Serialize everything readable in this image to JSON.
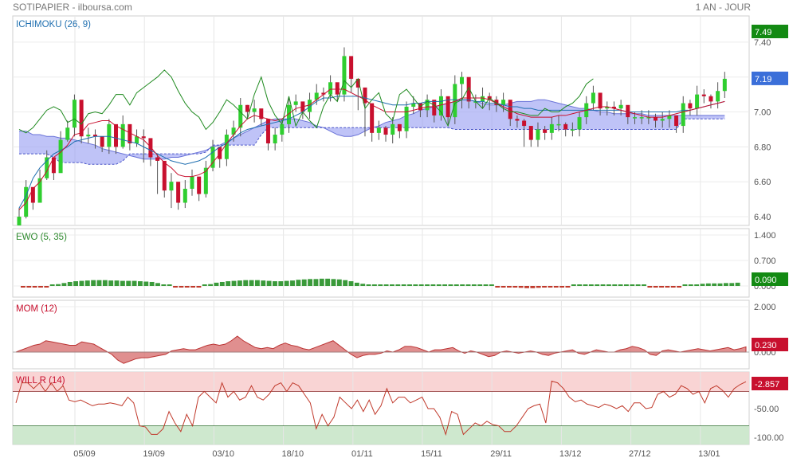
{
  "header": {
    "title": "SOTIPAPIER - ilboursa.com",
    "period": "1 AN - JOUR"
  },
  "colors": {
    "up": "#2fce2f",
    "down": "#c8102e",
    "tenkan": "#c8102e",
    "kijun": "#1f6fb0",
    "chikou": "#1f8a1f",
    "cloud": "#9da3f2",
    "ewo_up": "#3a9a3a",
    "ewo_down": "#c0392b",
    "mom": "#d66a6a",
    "will": "#c0392b",
    "badge_green": "#138a13",
    "badge_blue": "#3b6fd9",
    "badge_red": "#c8102e"
  },
  "chart_data": [
    {
      "type": "candlestick",
      "title": "ICHIMOKU (26, 9)",
      "y_ticks": [
        "7.40",
        "7.20",
        "7.00",
        "6.80",
        "6.60",
        "6.40"
      ],
      "ylim": [
        6.35,
        7.55
      ],
      "x_tick_labels": [
        "05/09",
        "19/09",
        "03/10",
        "18/10",
        "01/11",
        "15/11",
        "29/11",
        "13/12",
        "27/12",
        "13/01"
      ],
      "badges": [
        "7.49",
        "7.19"
      ],
      "series": {
        "close": [
          6.4,
          6.57,
          6.48,
          6.62,
          6.74,
          6.65,
          6.84,
          6.91,
          7.07,
          6.86,
          6.87,
          6.86,
          6.8,
          6.93,
          6.8,
          6.93,
          6.82,
          6.86,
          6.85,
          6.74,
          6.72,
          6.55,
          6.6,
          6.48,
          6.56,
          6.63,
          6.53,
          6.68,
          6.8,
          6.73,
          6.87,
          6.91,
          7.04,
          7.0,
          7.02,
          6.96,
          6.82,
          6.87,
          6.93,
          7.04,
          7.06,
          7.0,
          7.07,
          7.11,
          7.1,
          7.17,
          7.1,
          7.32,
          7.19,
          7.14,
          7.05,
          6.88,
          6.91,
          6.87,
          6.93,
          6.89,
          7.03,
          7.05,
          7.01,
          7.07,
          6.98,
          7.09,
          6.97,
          7.16,
          7.2,
          7.06,
          7.06,
          7.09,
          7.07,
          7.04,
          7.07,
          6.96,
          6.95,
          6.92,
          6.84,
          6.9,
          6.88,
          6.93,
          6.93,
          6.9,
          6.9,
          6.97,
          7.05,
          7.11,
          7.02,
          7.03,
          7.02,
          7.04,
          6.97,
          6.97,
          6.97,
          6.97,
          6.95,
          6.96,
          6.98,
          6.92,
          7.05,
          7.02,
          7.1,
          7.09,
          7.06,
          7.12,
          7.19
        ],
        "high": [
          6.45,
          6.61,
          6.53,
          6.67,
          6.78,
          6.69,
          6.89,
          6.95,
          7.1,
          6.91,
          6.91,
          6.9,
          6.84,
          6.96,
          6.85,
          6.98,
          6.86,
          6.9,
          6.9,
          6.79,
          6.76,
          6.59,
          6.65,
          6.53,
          6.61,
          6.67,
          6.58,
          6.72,
          6.84,
          6.77,
          6.9,
          6.95,
          7.08,
          7.04,
          7.07,
          6.99,
          6.87,
          6.91,
          6.96,
          7.08,
          7.1,
          7.04,
          7.11,
          7.16,
          7.14,
          7.21,
          7.14,
          7.37,
          7.23,
          7.19,
          7.08,
          6.93,
          6.95,
          6.92,
          6.97,
          6.93,
          7.06,
          7.09,
          7.05,
          7.1,
          7.03,
          7.13,
          7.02,
          7.21,
          7.23,
          7.1,
          7.1,
          7.14,
          7.11,
          7.09,
          7.11,
          7.0,
          6.98,
          6.96,
          6.88,
          6.94,
          6.92,
          6.97,
          6.98,
          6.94,
          6.94,
          7.0,
          7.09,
          7.15,
          7.06,
          7.06,
          7.06,
          7.07,
          7.02,
          7.0,
          7.01,
          7.01,
          6.99,
          7.0,
          7.01,
          6.96,
          7.09,
          7.07,
          7.15,
          7.13,
          7.1,
          7.17,
          7.23
        ],
        "low": [
          6.36,
          6.39,
          6.44,
          6.5,
          6.61,
          6.61,
          6.72,
          6.83,
          6.86,
          6.82,
          6.82,
          6.79,
          6.77,
          6.76,
          6.76,
          6.79,
          6.78,
          6.8,
          6.71,
          6.69,
          6.53,
          6.51,
          6.45,
          6.44,
          6.45,
          6.52,
          6.49,
          6.51,
          6.66,
          6.68,
          6.69,
          6.83,
          6.86,
          6.96,
          6.94,
          6.92,
          6.78,
          6.78,
          6.83,
          6.88,
          7.0,
          6.96,
          6.96,
          7.04,
          7.06,
          7.06,
          7.06,
          7.06,
          7.11,
          7.01,
          6.86,
          6.83,
          6.84,
          6.83,
          6.82,
          6.85,
          6.85,
          6.99,
          6.97,
          6.97,
          6.94,
          6.95,
          6.93,
          6.93,
          7.02,
          7.02,
          7.02,
          7.02,
          7.01,
          7.0,
          7.0,
          6.92,
          6.91,
          6.8,
          6.8,
          6.8,
          6.84,
          6.84,
          6.89,
          6.86,
          6.86,
          6.86,
          6.93,
          7.01,
          6.98,
          6.98,
          6.98,
          6.98,
          6.93,
          6.93,
          6.93,
          6.93,
          6.91,
          6.91,
          6.91,
          6.88,
          6.88,
          6.98,
          6.98,
          7.05,
          7.02,
          7.02,
          7.08
        ],
        "tenkan": [
          6.44,
          6.48,
          6.56,
          6.6,
          6.66,
          6.74,
          6.77,
          6.81,
          6.87,
          6.88,
          6.93,
          6.94,
          6.95,
          6.95,
          6.92,
          6.9,
          6.88,
          6.86,
          6.84,
          6.8,
          6.75,
          6.71,
          6.68,
          6.64,
          6.63,
          6.63,
          6.64,
          6.66,
          6.71,
          6.76,
          6.82,
          6.87,
          6.92,
          6.96,
          6.98,
          6.97,
          6.96,
          6.95,
          6.96,
          6.99,
          7.02,
          7.03,
          7.04,
          7.07,
          7.1,
          7.13,
          7.13,
          7.13,
          7.11,
          7.09,
          7.07,
          7.04,
          7.02,
          7.0,
          7.0,
          7.0,
          7.0,
          7.01,
          7.02,
          7.03,
          7.03,
          7.04,
          7.05,
          7.06,
          7.08,
          7.08,
          7.08,
          7.08,
          7.07,
          7.05,
          7.03,
          7.01,
          6.99,
          6.98,
          6.97,
          6.97,
          6.97,
          6.97,
          6.98,
          6.98,
          6.99,
          7.0,
          7.01,
          7.02,
          7.03,
          7.03,
          7.02,
          7.01,
          7.0,
          6.99,
          6.98,
          6.97,
          6.97,
          6.97,
          6.98,
          6.99,
          7.0,
          7.01,
          7.02,
          7.03,
          7.04,
          7.05,
          7.06
        ],
        "kijun": [
          6.45,
          6.52,
          6.62,
          6.68,
          6.72,
          6.76,
          6.78,
          6.8,
          6.83,
          6.84,
          6.85,
          6.86,
          6.86,
          6.86,
          6.85,
          6.84,
          6.83,
          6.82,
          6.8,
          6.78,
          6.76,
          6.74,
          6.72,
          6.71,
          6.7,
          6.71,
          6.72,
          6.74,
          6.77,
          6.8,
          6.82,
          6.85,
          6.88,
          6.9,
          6.91,
          6.92,
          6.93,
          6.94,
          6.95,
          6.96,
          6.98,
          7.0,
          7.03,
          7.06,
          7.08,
          7.08,
          7.09,
          7.09,
          7.09,
          7.09,
          7.08,
          7.07,
          7.06,
          7.05,
          7.04,
          7.04,
          7.04,
          7.05,
          7.05,
          7.06,
          7.06,
          7.06,
          7.07,
          7.07,
          7.07,
          7.07,
          7.06,
          7.06,
          7.05,
          7.05,
          7.04,
          7.03,
          7.03,
          7.02,
          7.02,
          7.01,
          7.01,
          7.01,
          7.01,
          7.01,
          7.01,
          7.01,
          7.01,
          7.01,
          7.01,
          7.01,
          7.01,
          7.01,
          7.0,
          7.0,
          7.0,
          7.0,
          7.0,
          7.0,
          7.0,
          7.0,
          7.01,
          7.01,
          7.02,
          7.03,
          7.04,
          7.05,
          7.06
        ],
        "chikou": [
          6.9,
          6.88,
          6.91,
          6.96,
          7.01,
          7.03,
          7.01,
          6.94,
          6.96,
          6.93,
          6.99,
          7.0,
          6.99,
          7.04,
          7.1,
          7.1,
          7.04,
          7.11,
          7.14,
          7.17,
          7.2,
          7.24,
          7.2,
          7.12,
          7.05,
          7.0,
          6.97,
          6.9,
          6.94,
          7.0,
          7.07,
          7.04,
          7.0,
          6.96,
          7.1,
          7.2,
          7.06,
          6.98,
          6.93,
          7.09,
          6.92,
          7.0,
          6.95,
          6.91,
          7.03,
          7.1,
          7.06,
          7.18,
          7.14,
          7.19,
          7.02,
          7.07,
          7.11,
          6.99,
          6.95,
          7.1,
          7.13,
          7.08,
          7.03,
          7.06,
          7.04,
          7.0,
          6.92,
          7.05,
          7.07,
          7.14,
          7.06,
          7.02,
          7.08,
          7.05,
          7.02,
          7.0,
          7.0,
          6.99,
          6.98,
          6.98,
          7.02,
          7.0,
          7.0,
          7.03,
          7.05,
          7.09,
          7.16,
          7.19
        ],
        "span_a": [
          6.89,
          6.89,
          6.87,
          6.87,
          6.86,
          6.86,
          6.85,
          6.85,
          6.84,
          6.83,
          6.82,
          6.81,
          6.79,
          6.78,
          6.77,
          6.76,
          6.75,
          6.74,
          6.73,
          6.73,
          6.73,
          6.73,
          6.74,
          6.74,
          6.75,
          6.76,
          6.77,
          6.78,
          6.8,
          6.81,
          6.83,
          6.85,
          6.87,
          6.89,
          6.91,
          6.93,
          6.95,
          6.96,
          6.96,
          6.96,
          6.96,
          6.95,
          6.94,
          6.92,
          6.91,
          6.89,
          6.87,
          6.86,
          6.86,
          6.87,
          6.89,
          6.91,
          6.92,
          6.94,
          6.95,
          6.96,
          6.98,
          6.99,
          7.01,
          7.02,
          7.03,
          7.04,
          7.05,
          7.06,
          7.07,
          7.07,
          7.06,
          7.05,
          7.04,
          7.04,
          7.04,
          7.05,
          7.06,
          7.06,
          7.06,
          7.07,
          7.07,
          7.06,
          7.05,
          7.04,
          7.03,
          7.02,
          7.02,
          7.01,
          7.0,
          7.0,
          6.99,
          6.99,
          6.99,
          6.99,
          6.99,
          6.98,
          6.98,
          6.98,
          6.98,
          6.98,
          6.98,
          6.98,
          6.98,
          6.98,
          6.98,
          6.98,
          6.98
        ],
        "span_b": [
          6.76,
          6.76,
          6.76,
          6.76,
          6.76,
          6.74,
          6.71,
          6.71,
          6.71,
          6.71,
          6.7,
          6.7,
          6.7,
          6.7,
          6.7,
          6.72,
          6.76,
          6.76,
          6.76,
          6.76,
          6.76,
          6.76,
          6.76,
          6.76,
          6.76,
          6.76,
          6.76,
          6.77,
          6.81,
          6.81,
          6.81,
          6.81,
          6.81,
          6.81,
          6.81,
          6.87,
          6.91,
          6.91,
          6.91,
          6.91,
          6.91,
          6.91,
          6.91,
          6.91,
          6.91,
          6.91,
          6.91,
          6.91,
          6.91,
          6.91,
          6.91,
          6.91,
          6.91,
          6.91,
          6.91,
          6.91,
          6.91,
          6.91,
          6.91,
          6.91,
          6.91,
          6.91,
          6.91,
          6.9,
          6.9,
          6.9,
          6.9,
          6.9,
          6.9,
          6.9,
          6.9,
          6.9,
          6.9,
          6.9,
          6.9,
          6.9,
          6.9,
          6.9,
          6.9,
          6.9,
          6.9,
          6.9,
          6.9,
          6.9,
          6.9,
          6.9,
          6.9,
          6.9,
          6.9,
          6.9,
          6.9,
          6.9,
          6.9,
          6.9,
          6.9,
          6.9,
          6.96,
          6.96,
          6.96,
          6.96,
          6.96,
          6.96,
          6.96
        ]
      }
    },
    {
      "type": "bar",
      "title": "EWO (5, 35)",
      "y_ticks": [
        "1.400",
        "0.700",
        "0.000"
      ],
      "ylim": [
        0,
        1.4
      ],
      "badge": "0.090",
      "values": [
        -0.04,
        -0.04,
        -0.04,
        -0.03,
        -0.02,
        0.02,
        0.05,
        0.08,
        0.11,
        0.13,
        0.14,
        0.15,
        0.16,
        0.16,
        0.16,
        0.15,
        0.15,
        0.14,
        0.14,
        0.14,
        0.13,
        0.12,
        0.11,
        0.08,
        0.04,
        0.0,
        -0.01,
        -0.02,
        -0.03,
        -0.02,
        -0.01,
        0.02,
        0.05,
        0.09,
        0.11,
        0.13,
        0.14,
        0.15,
        0.16,
        0.16,
        0.16,
        0.15,
        0.14,
        0.13,
        0.13,
        0.14,
        0.15,
        0.17,
        0.18,
        0.19,
        0.19,
        0.2,
        0.2,
        0.19,
        0.18,
        0.16,
        0.13,
        0.09,
        0.06,
        0.04,
        0.02,
        0.01,
        0.01,
        0.01,
        0.01,
        0.01,
        0.01,
        0.01,
        0.01,
        0.02,
        0.02,
        0.03,
        0.03,
        0.03,
        0.03,
        0.02,
        0.02,
        0.02,
        0.02,
        0.01,
        0.0,
        -0.01,
        -0.02,
        -0.03,
        -0.04,
        -0.05,
        -0.06,
        -0.06,
        -0.05,
        -0.04,
        -0.03,
        -0.03,
        -0.02,
        -0.02,
        0.0,
        0.02,
        0.03,
        0.04,
        0.04,
        0.04,
        0.04,
        0.03,
        0.02,
        0.02,
        0.01,
        0.01,
        0.0,
        -0.01,
        -0.01,
        -0.01,
        -0.01,
        -0.01,
        -0.01,
        0.0,
        0.02,
        0.04,
        0.06,
        0.07,
        0.07,
        0.07,
        0.08,
        0.08,
        0.09
      ]
    },
    {
      "type": "area",
      "title": "MOM (12)",
      "y_ticks": [
        "2.000",
        "0.000"
      ],
      "ylim": [
        -0.5,
        2.0
      ],
      "badge": "0.230",
      "values": [
        0.0,
        0.1,
        0.2,
        0.3,
        0.35,
        0.5,
        0.45,
        0.4,
        0.35,
        0.3,
        0.3,
        0.45,
        0.4,
        0.35,
        0.2,
        0.05,
        -0.1,
        -0.35,
        -0.5,
        -0.4,
        -0.3,
        -0.25,
        -0.25,
        -0.2,
        -0.15,
        -0.1,
        0.05,
        0.1,
        0.15,
        0.1,
        0.1,
        0.2,
        0.3,
        0.35,
        0.3,
        0.35,
        0.5,
        0.7,
        0.5,
        0.35,
        0.2,
        0.15,
        0.2,
        0.15,
        0.3,
        0.4,
        0.3,
        0.25,
        0.15,
        0.1,
        0.2,
        0.3,
        0.4,
        0.5,
        0.3,
        0.1,
        -0.1,
        -0.25,
        -0.15,
        -0.1,
        -0.1,
        -0.05,
        0.05,
        0.0,
        0.1,
        0.25,
        0.25,
        0.2,
        0.1,
        0.0,
        0.1,
        0.1,
        0.15,
        0.2,
        0.05,
        -0.05,
        0.05,
        0.0,
        -0.1,
        -0.2,
        -0.15,
        0.0,
        0.05,
        0.0,
        -0.05,
        0.0,
        0.05,
        0.0,
        -0.1,
        -0.15,
        -0.05,
        0.0,
        0.05,
        0.1,
        -0.05,
        -0.1,
        0.0,
        0.1,
        0.05,
        0.0,
        0.0,
        0.1,
        0.15,
        0.25,
        0.2,
        0.1,
        -0.1,
        -0.15,
        0.05,
        0.1,
        0.05,
        0.0,
        0.05,
        0.1,
        0.15,
        0.1,
        0.05,
        0.1,
        0.15,
        0.2,
        0.1,
        0.15,
        0.23
      ]
    },
    {
      "type": "line",
      "title": "WILL R (14)",
      "y_ticks": [
        "0",
        "-50.00",
        "-100.00"
      ],
      "ylim": [
        -100,
        0
      ],
      "badge": "-2.857",
      "values": [
        -40,
        -5,
        -5,
        -15,
        -5,
        -20,
        -5,
        -20,
        -10,
        -35,
        -38,
        -35,
        -40,
        -45,
        -42,
        -42,
        -40,
        -42,
        -45,
        -30,
        -40,
        -80,
        -82,
        -95,
        -95,
        -85,
        -55,
        -75,
        -90,
        -60,
        -80,
        -30,
        -20,
        -30,
        -40,
        -5,
        -30,
        -20,
        -35,
        -30,
        -10,
        -30,
        -35,
        -25,
        -10,
        -5,
        -20,
        -5,
        -10,
        -25,
        -40,
        -85,
        -60,
        -80,
        -65,
        -30,
        -40,
        -50,
        -35,
        -55,
        -35,
        -60,
        -45,
        -15,
        -40,
        -30,
        -30,
        -40,
        -35,
        -30,
        -50,
        -50,
        -65,
        -95,
        -55,
        -60,
        -95,
        -85,
        -75,
        -80,
        -72,
        -78,
        -80,
        -90,
        -90,
        -80,
        -65,
        -50,
        -45,
        -42,
        -75,
        -2,
        -5,
        -15,
        -30,
        -38,
        -35,
        -42,
        -45,
        -48,
        -42,
        -45,
        -50,
        -45,
        -55,
        -40,
        -40,
        -50,
        -48,
        -25,
        -20,
        -30,
        -25,
        -10,
        -15,
        -25,
        -20,
        -40,
        -15,
        -10,
        -18,
        -30,
        -15,
        -8,
        -3
      ]
    }
  ]
}
